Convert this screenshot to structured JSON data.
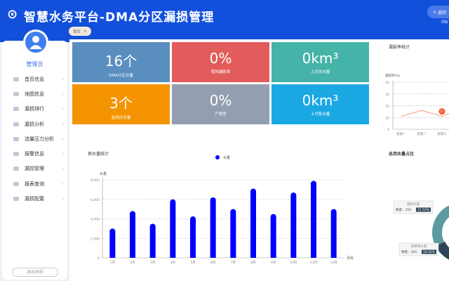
{
  "header": {
    "title": "智慧水务平台-DMA分区漏损管理",
    "back_label": "返回",
    "date": "09/"
  },
  "user": {
    "name": "管理员"
  },
  "sidebar": {
    "items": [
      {
        "label": "首页信息"
      },
      {
        "label": "地图信息"
      },
      {
        "label": "漏损排行"
      },
      {
        "label": "漏损分析"
      },
      {
        "label": "流量压力分析"
      },
      {
        "label": "报警信息"
      },
      {
        "label": "漏控管理"
      },
      {
        "label": "报表查询"
      },
      {
        "label": "漏损配置"
      }
    ],
    "logout": "退出系统"
  },
  "tabs": [
    {
      "label": "首页",
      "close": "×"
    }
  ],
  "cards": [
    {
      "value": "16个",
      "label": "DMA分区总量",
      "color": "#5a8ebf"
    },
    {
      "value": "0%",
      "label": "管网漏损率",
      "color": "#e25c5c"
    },
    {
      "value": "0km³",
      "label": "上月供水量",
      "color": "#45b3a8"
    },
    {
      "value": "3个",
      "label": "监测点总量",
      "color": "#f39400"
    },
    {
      "value": "0%",
      "label": "产销差",
      "color": "#939fb0"
    },
    {
      "value": "0km³",
      "label": "上月售水量",
      "color": "#1aa8e3"
    }
  ],
  "chart_data": [
    {
      "type": "bar",
      "title": "供水量统计",
      "legend": [
        "水量"
      ],
      "ylabel": "水量",
      "xlabel": "月份",
      "ylim": [
        0,
        8000
      ],
      "yticks": [
        "0",
        "2,000",
        "4,000",
        "6,000",
        "8,000"
      ],
      "categories": [
        "1月",
        "2月",
        "3月",
        "4月",
        "5月",
        "6月",
        "7月",
        "8月",
        "9月",
        "10月",
        "11月",
        "12月"
      ],
      "series": [
        {
          "name": "水量",
          "values": [
            3000,
            4800,
            3500,
            6000,
            4250,
            6200,
            5000,
            7100,
            4500,
            6700,
            7900,
            5000
          ],
          "color": "#0000ff"
        }
      ],
      "grid": true
    },
    {
      "type": "line",
      "title": "漏损率统计",
      "ylabel": "漏损率(%)",
      "ylim": [
        0,
        40
      ],
      "yticks": [
        "0",
        "10",
        "20",
        "30",
        "40"
      ],
      "categories": [
        "星期一",
        "星期二",
        "星期三"
      ],
      "values": [
        11,
        16,
        11
      ],
      "marker_label": "11",
      "color": "#f5805f"
    },
    {
      "type": "pie",
      "title": "总用水量占比",
      "slices": [
        {
          "name": "漏损水量",
          "count_label": "数量：350",
          "percent": "31.53%"
        },
        {
          "name": "免费用水量",
          "count_label": "数量：200",
          "percent": "18.02%"
        }
      ]
    }
  ]
}
